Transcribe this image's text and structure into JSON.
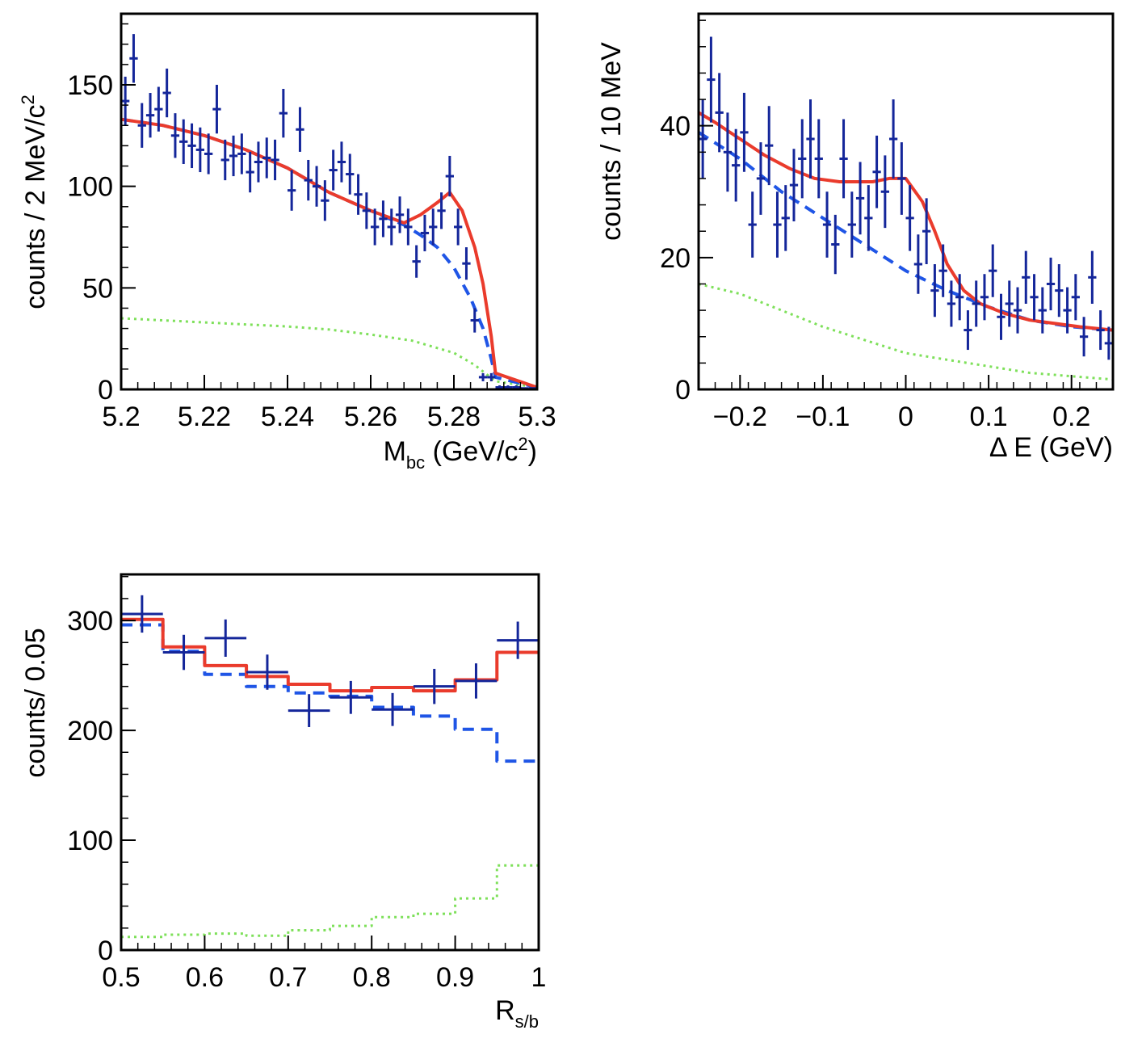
{
  "colors": {
    "data": "#14269a",
    "total_fit": "#ea3b2c",
    "background_fit": "#1f55e6",
    "secondary": "#7ee05a",
    "frame": "#000000"
  },
  "chart_data": [
    {
      "id": "mbc",
      "type": "line",
      "ylabel": "counts / 2 MeV/c",
      "ylabel_sup": "2",
      "xlabel_main": "M",
      "xlabel_sub": "bc",
      "xlabel_rest": " (GeV/c",
      "xlabel_sup": "2",
      "xlabel_end": ")",
      "xlim": [
        5.2,
        5.3
      ],
      "ylim": [
        0,
        185
      ],
      "xticks": [
        5.2,
        5.22,
        5.24,
        5.26,
        5.28,
        5.3
      ],
      "xtick_labels": [
        "5.2",
        "5.22",
        "5.24",
        "5.26",
        "5.28",
        "5.3"
      ],
      "yticks": [
        0,
        50,
        100,
        150
      ],
      "ytick_labels": [
        "0",
        "50",
        "100",
        "150"
      ],
      "bin_width": 0.002,
      "points": {
        "x": [
          5.201,
          5.203,
          5.205,
          5.207,
          5.209,
          5.211,
          5.213,
          5.215,
          5.217,
          5.219,
          5.221,
          5.223,
          5.225,
          5.227,
          5.229,
          5.231,
          5.233,
          5.235,
          5.237,
          5.239,
          5.241,
          5.243,
          5.245,
          5.247,
          5.249,
          5.251,
          5.253,
          5.255,
          5.257,
          5.259,
          5.261,
          5.263,
          5.265,
          5.267,
          5.269,
          5.271,
          5.273,
          5.275,
          5.277,
          5.279,
          5.281,
          5.283,
          5.285,
          5.287,
          5.289,
          5.291,
          5.293,
          5.295,
          5.297,
          5.299
        ],
        "y": [
          142,
          163,
          130,
          135,
          138,
          146,
          125,
          122,
          120,
          118,
          116,
          138,
          113,
          115,
          116,
          107,
          112,
          114,
          113,
          136,
          98,
          128,
          103,
          100,
          93,
          108,
          112,
          106,
          96,
          88,
          80,
          84,
          80,
          86,
          80,
          63,
          77,
          80,
          88,
          105,
          80,
          62,
          34,
          6,
          6,
          1,
          1,
          1,
          0.5,
          0.5
        ],
        "yerr": [
          12,
          12,
          11,
          11,
          11,
          12,
          11,
          11,
          11,
          11,
          10,
          12,
          10,
          10,
          10,
          10,
          10,
          10,
          10,
          12,
          10,
          11,
          10,
          10,
          10,
          10,
          10,
          10,
          10,
          9,
          9,
          9,
          9,
          9,
          9,
          8,
          9,
          9,
          9,
          10,
          9,
          8,
          6,
          2,
          2,
          1,
          1,
          1,
          0.5,
          0.5
        ]
      },
      "series": [
        {
          "name": "total fit",
          "style": "solid",
          "x": [
            5.2,
            5.21,
            5.22,
            5.23,
            5.24,
            5.25,
            5.26,
            5.268,
            5.272,
            5.276,
            5.279,
            5.282,
            5.285,
            5.287,
            5.289,
            5.29,
            5.3
          ],
          "y": [
            133,
            130,
            125,
            118,
            109,
            97,
            88,
            82,
            86,
            92,
            97,
            88,
            70,
            52,
            26,
            8,
            1
          ]
        },
        {
          "name": "background fit",
          "style": "dashed",
          "x": [
            5.2,
            5.21,
            5.22,
            5.23,
            5.24,
            5.25,
            5.26,
            5.268,
            5.272,
            5.276,
            5.28,
            5.284,
            5.287,
            5.289,
            5.29,
            5.3
          ],
          "y": [
            133,
            130,
            125,
            118,
            109,
            97,
            88,
            81,
            76,
            70,
            60,
            45,
            30,
            15,
            6,
            1
          ]
        },
        {
          "name": "secondary component",
          "style": "dotted",
          "x": [
            5.2,
            5.21,
            5.22,
            5.23,
            5.24,
            5.25,
            5.26,
            5.27,
            5.28,
            5.285,
            5.29,
            5.3
          ],
          "y": [
            35,
            34,
            33,
            32,
            31,
            29.5,
            27,
            24,
            18,
            12,
            4,
            1
          ]
        }
      ]
    },
    {
      "id": "de",
      "type": "line",
      "ylabel": "counts / 10 MeV",
      "xlabel": "Δ E (GeV)",
      "xlim": [
        -0.25,
        0.25
      ],
      "ylim": [
        0,
        57
      ],
      "xticks": [
        -0.2,
        -0.1,
        0,
        0.1,
        0.2
      ],
      "xtick_labels": [
        "−0.2",
        "−0.1",
        "0",
        "0.1",
        "0.2"
      ],
      "yticks": [
        0,
        20,
        40
      ],
      "ytick_labels": [
        "0",
        "20",
        "40"
      ],
      "bin_width": 0.01,
      "points": {
        "x": [
          -0.245,
          -0.235,
          -0.225,
          -0.215,
          -0.205,
          -0.195,
          -0.185,
          -0.175,
          -0.165,
          -0.155,
          -0.145,
          -0.135,
          -0.125,
          -0.115,
          -0.105,
          -0.095,
          -0.085,
          -0.075,
          -0.065,
          -0.055,
          -0.045,
          -0.035,
          -0.025,
          -0.015,
          -0.005,
          0.005,
          0.015,
          0.025,
          0.035,
          0.045,
          0.055,
          0.065,
          0.075,
          0.085,
          0.095,
          0.105,
          0.115,
          0.125,
          0.135,
          0.145,
          0.155,
          0.165,
          0.175,
          0.185,
          0.195,
          0.205,
          0.215,
          0.225,
          0.235,
          0.245
        ],
        "y": [
          38,
          47,
          42,
          36,
          34,
          39,
          25,
          32,
          37,
          25,
          26,
          31,
          35,
          38,
          35,
          25,
          22,
          35,
          25,
          29,
          26,
          33,
          30,
          38,
          32,
          26,
          19,
          24,
          15,
          18,
          13,
          14,
          9,
          13,
          14,
          18,
          11,
          13,
          12,
          17,
          14,
          12,
          16,
          15,
          12,
          14,
          8,
          17,
          9,
          7
        ],
        "yerr": [
          6,
          6.5,
          6,
          6,
          5.5,
          6,
          5,
          5.5,
          6,
          5,
          5,
          5.5,
          6,
          6,
          6,
          5,
          4.5,
          6,
          5,
          5.5,
          5,
          5.5,
          5.5,
          6,
          5.5,
          5,
          4.5,
          5,
          4,
          4,
          3.5,
          3.5,
          3,
          3.5,
          3.5,
          4,
          3.5,
          3.5,
          3.5,
          4,
          3.5,
          3.5,
          4,
          4,
          3.5,
          3.5,
          3,
          4,
          3,
          2.5
        ]
      },
      "series": [
        {
          "name": "total fit",
          "style": "solid",
          "x": [
            -0.25,
            -0.23,
            -0.2,
            -0.17,
            -0.14,
            -0.11,
            -0.08,
            -0.06,
            -0.04,
            -0.02,
            0,
            0.02,
            0.035,
            0.05,
            0.07,
            0.09,
            0.12,
            0.15,
            0.18,
            0.21,
            0.25
          ],
          "y": [
            42,
            40.5,
            38,
            35.5,
            33.5,
            32,
            31.5,
            31.5,
            31.5,
            32,
            32,
            28.5,
            24,
            19,
            15,
            13,
            11.5,
            10.5,
            10,
            9.5,
            9
          ]
        },
        {
          "name": "background fit",
          "style": "dashed",
          "x": [
            -0.25,
            -0.2,
            -0.15,
            -0.1,
            -0.05,
            0,
            0.05,
            0.1,
            0.15,
            0.2,
            0.25
          ],
          "y": [
            39,
            35,
            30,
            26,
            22,
            18,
            15,
            12.5,
            10.5,
            9.5,
            9
          ]
        },
        {
          "name": "secondary component",
          "style": "dotted",
          "x": [
            -0.25,
            -0.2,
            -0.15,
            -0.1,
            -0.05,
            0,
            0.05,
            0.1,
            0.15,
            0.2,
            0.25
          ],
          "y": [
            16,
            14.5,
            12,
            9.5,
            7.5,
            5.5,
            4.5,
            3.5,
            2.5,
            2,
            1.5
          ]
        }
      ]
    },
    {
      "id": "rsb",
      "type": "line",
      "ylabel": "counts/ 0.05",
      "xlabel_main": "R",
      "xlabel_sub": "s/b",
      "xlim": [
        0.5,
        1.0
      ],
      "ylim": [
        0,
        342
      ],
      "xticks": [
        0.5,
        0.6,
        0.7,
        0.8,
        0.9,
        1.0
      ],
      "xtick_labels": [
        "0.5",
        "0.6",
        "0.7",
        "0.8",
        "0.9",
        "1"
      ],
      "yticks": [
        0,
        100,
        200,
        300
      ],
      "ytick_labels": [
        "0",
        "100",
        "200",
        "300"
      ],
      "bin_width": 0.05,
      "points": {
        "x": [
          0.525,
          0.575,
          0.625,
          0.675,
          0.725,
          0.775,
          0.825,
          0.875,
          0.925,
          0.975
        ],
        "y": [
          306,
          271,
          284,
          253,
          218,
          230,
          219,
          240,
          245,
          282
        ],
        "yerr": [
          17,
          16,
          17,
          16,
          15,
          15,
          15,
          16,
          16,
          17
        ]
      },
      "series": [
        {
          "name": "total fit",
          "style": "solid",
          "step": true,
          "edges": [
            0.5,
            0.55,
            0.6,
            0.65,
            0.7,
            0.75,
            0.8,
            0.85,
            0.9,
            0.95,
            1.0
          ],
          "values": [
            301,
            276,
            259,
            249,
            242,
            236,
            239,
            236,
            246,
            271
          ]
        },
        {
          "name": "background fit",
          "style": "dashed",
          "step": true,
          "edges": [
            0.5,
            0.55,
            0.6,
            0.65,
            0.7,
            0.75,
            0.8,
            0.85,
            0.9,
            0.95,
            1.0
          ],
          "values": [
            296,
            272,
            251,
            240,
            234,
            231,
            221,
            213,
            201,
            172
          ]
        },
        {
          "name": "secondary component",
          "style": "dotted",
          "step": true,
          "edges": [
            0.5,
            0.55,
            0.6,
            0.65,
            0.7,
            0.75,
            0.8,
            0.85,
            0.9,
            0.95,
            1.0
          ],
          "values": [
            12,
            14,
            15,
            13,
            18,
            22,
            30,
            33,
            47,
            77
          ]
        }
      ]
    }
  ]
}
